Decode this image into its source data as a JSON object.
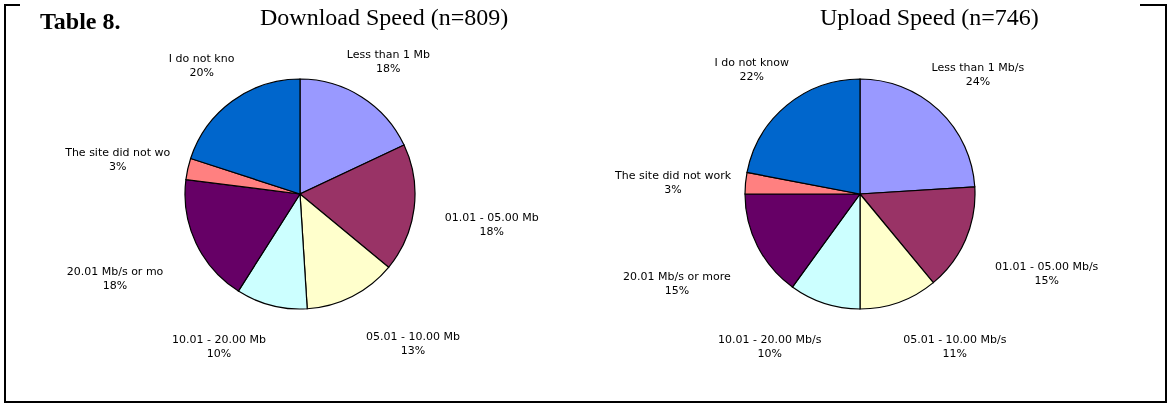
{
  "chart_data": [
    {
      "type": "pie",
      "title": "Download Speed (n=809)",
      "annotations": [
        "Table 8."
      ],
      "categories": [
        "Less than 1 Mb",
        "01.01 - 05.00 Mb",
        "05.01 - 10.00 Mb",
        "10.01 - 20.00 Mb",
        "20.01 Mb/s or mo",
        "The site did not wo",
        "I do not kno"
      ],
      "values": [
        18,
        18,
        13,
        10,
        18,
        3,
        20
      ],
      "value_labels": [
        "18%",
        "18%",
        "13%",
        "10%",
        "18%",
        "3%",
        "20%"
      ],
      "colors": [
        "#9999ff",
        "#993366",
        "#ffffcc",
        "#ccffff",
        "#660066",
        "#ff8080",
        "#0066cc"
      ],
      "legend": false
    },
    {
      "type": "pie",
      "title": "Upload Speed (n=746)",
      "categories": [
        "Less than 1 Mb/s",
        "01.01 - 05.00 Mb/s",
        "05.01 - 10.00 Mb/s",
        "10.01 - 20.00 Mb/s",
        "20.01 Mb/s or more",
        "The site did not work",
        "I do not know"
      ],
      "values": [
        24,
        15,
        11,
        10,
        15,
        3,
        22
      ],
      "value_labels": [
        "24%",
        "15%",
        "11%",
        "10%",
        "15%",
        "3%",
        "22%"
      ],
      "colors": [
        "#9999ff",
        "#993366",
        "#ffffcc",
        "#ccffff",
        "#660066",
        "#ff8080",
        "#0066cc"
      ],
      "legend": false
    }
  ]
}
